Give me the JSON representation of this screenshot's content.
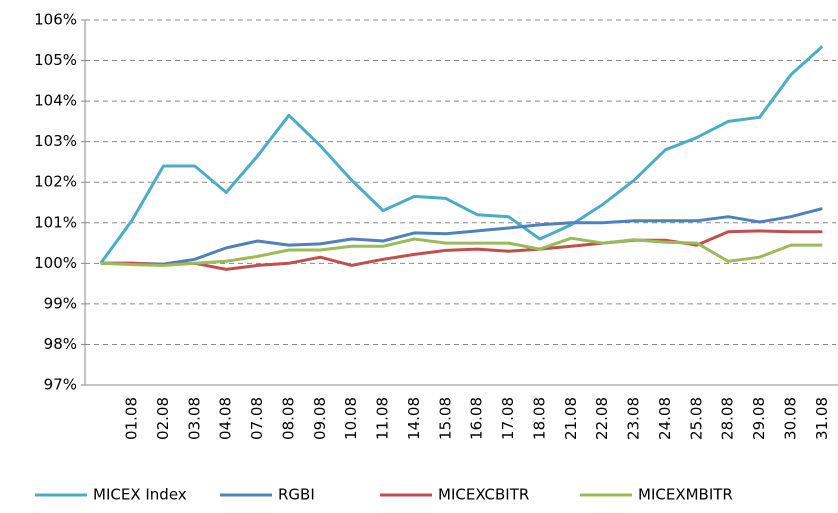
{
  "chart_data": {
    "type": "line",
    "categories": [
      null,
      "01.08",
      "02.08",
      "03.08",
      "04.08",
      "07.08",
      "08.08",
      "09.08",
      "10.08",
      "11.08",
      "14.08",
      "15.08",
      "16.08",
      "17.08",
      "18.08",
      "21.08",
      "22.08",
      "23.08",
      "24.08",
      "25.08",
      "28.08",
      "29.08",
      "30.08",
      "31.08"
    ],
    "series": [
      {
        "name": "MICEX Index",
        "color": "#4bacc6",
        "values": [
          100,
          101.06,
          102.4,
          102.4,
          101.75,
          102.65,
          103.65,
          102.9,
          102.05,
          101.3,
          101.65,
          101.6,
          101.2,
          101.15,
          100.6,
          100.95,
          101.45,
          102.05,
          102.8,
          103.1,
          103.5,
          103.6,
          104.65,
          105.35
        ]
      },
      {
        "name": "RGBI",
        "color": "#4f81bd",
        "values": [
          100,
          100.0,
          99.98,
          100.1,
          100.38,
          100.55,
          100.45,
          100.48,
          100.6,
          100.55,
          100.75,
          100.73,
          100.8,
          100.87,
          100.95,
          101.0,
          101.0,
          101.05,
          101.05,
          101.05,
          101.15,
          101.02,
          101.15,
          101.35
        ]
      },
      {
        "name": "MICEXCBITR",
        "color": "#c0504d",
        "values": [
          100,
          100.0,
          99.97,
          100.0,
          99.85,
          99.95,
          100.0,
          100.15,
          99.95,
          100.1,
          100.22,
          100.32,
          100.35,
          100.3,
          100.35,
          100.42,
          100.5,
          100.57,
          100.57,
          100.45,
          100.78,
          100.8,
          100.78,
          100.78
        ]
      },
      {
        "name": "MICEXMBITR",
        "color": "#9bbb59",
        "values": [
          100,
          99.97,
          99.95,
          100.0,
          100.05,
          100.17,
          100.33,
          100.33,
          100.42,
          100.42,
          100.6,
          100.5,
          100.5,
          100.5,
          100.35,
          100.62,
          100.5,
          100.58,
          100.52,
          100.5,
          100.05,
          100.15,
          100.45,
          100.45
        ]
      }
    ],
    "ylim": [
      97,
      106
    ],
    "yticks": [
      {
        "value": 97,
        "label": "97%"
      },
      {
        "value": 98,
        "label": "98%"
      },
      {
        "value": 99,
        "label": "99%"
      },
      {
        "value": 100,
        "label": "100%"
      },
      {
        "value": 101,
        "label": "101%"
      },
      {
        "value": 102,
        "label": "102%"
      },
      {
        "value": 103,
        "label": "103%"
      },
      {
        "value": 104,
        "label": "104%"
      },
      {
        "value": 105,
        "label": "105%"
      },
      {
        "value": 106,
        "label": "106%"
      }
    ],
    "grid": true,
    "legend": "bottom"
  }
}
